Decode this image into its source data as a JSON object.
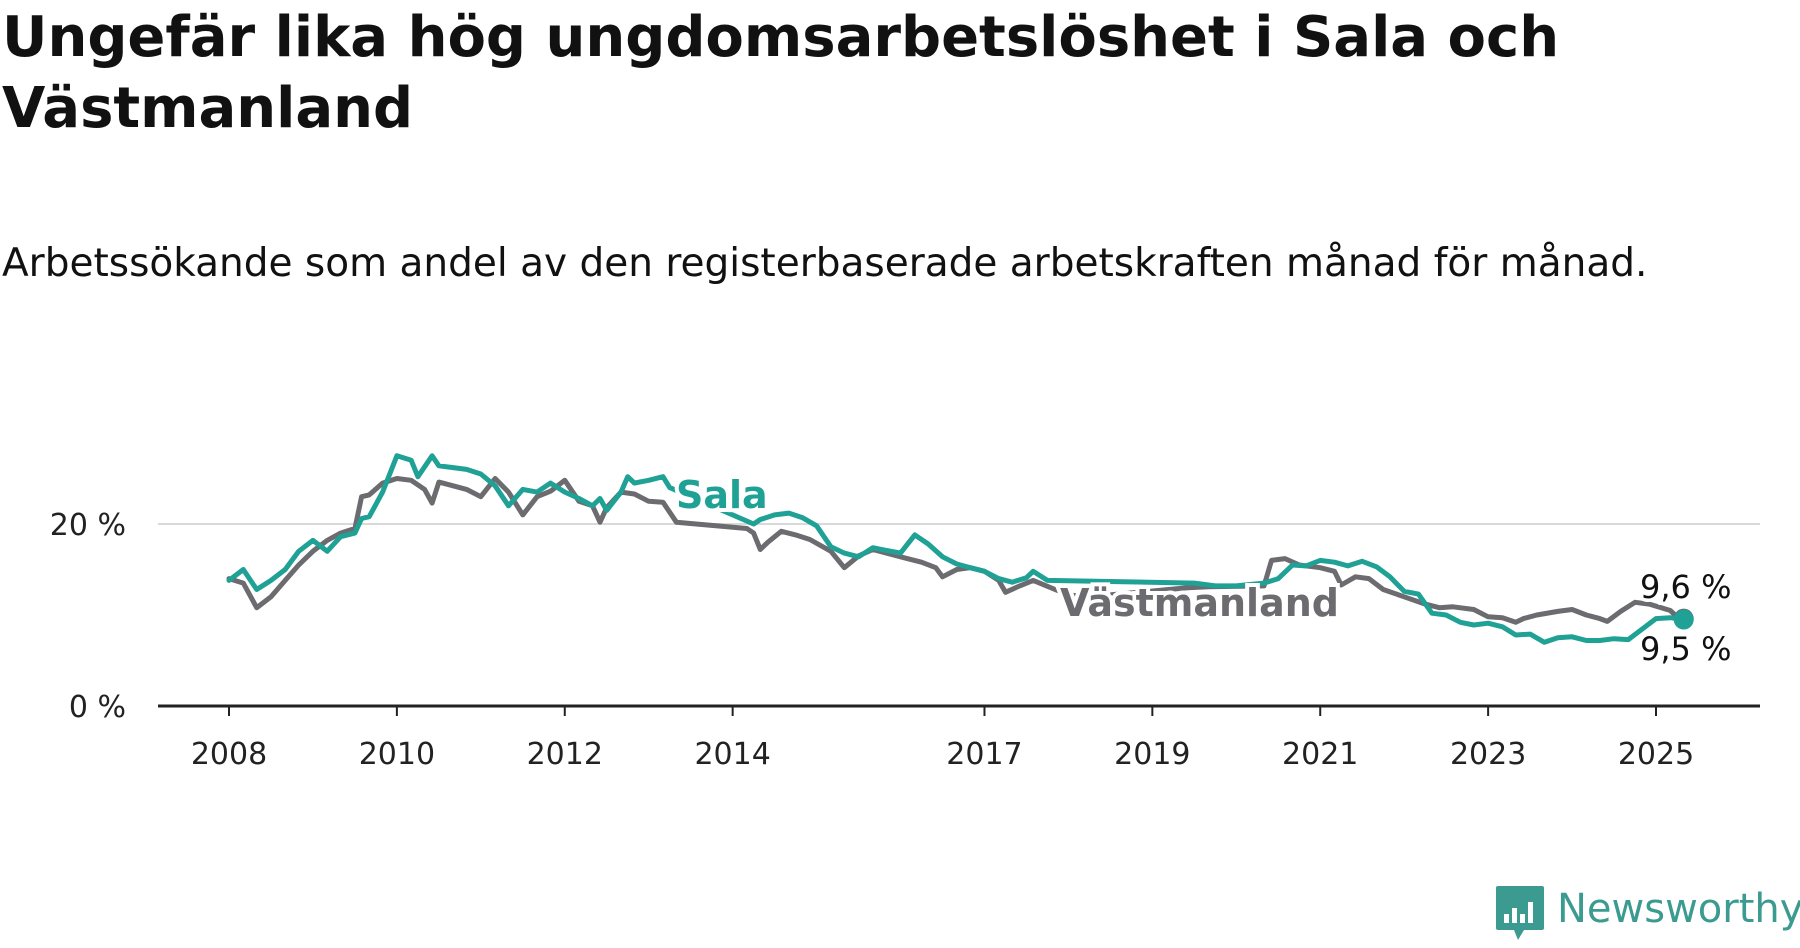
{
  "title": "Ungefär lika hög ungdomsarbetslöshet i Sala och Västmanland",
  "subtitle": "Arbetssökande som andel av den registerbaserade arbetskraften månad för månad.",
  "brand": {
    "name": "Newsworthy",
    "icon": "newsworthy-logo-icon",
    "color": "#3c9b91"
  },
  "chart_data": {
    "type": "line",
    "title": "Ungefär lika hög ungdomsarbetslöshet i Sala och Västmanland",
    "subtitle": "Arbetssökande som andel av den registerbaserade arbetskraften månad för månad.",
    "xlabel": "",
    "ylabel": "",
    "x_ticks": [
      "2008",
      "2010",
      "2012",
      "2014",
      "2017",
      "2019",
      "2021",
      "2023",
      "2025"
    ],
    "y_ticks": [
      "0 %",
      "20 %"
    ],
    "ylim": [
      0,
      30
    ],
    "grid": "horizontal",
    "legend": "inline labels",
    "series": [
      {
        "name": "Västmanland",
        "color": "#6b6b70",
        "end_label": "9,6 %",
        "points": [
          [
            2008.0,
            14.0
          ],
          [
            2008.17,
            13.5
          ],
          [
            2008.33,
            10.8
          ],
          [
            2008.5,
            12.0
          ],
          [
            2008.67,
            13.8
          ],
          [
            2008.83,
            15.5
          ],
          [
            2009.0,
            17.0
          ],
          [
            2009.17,
            18.2
          ],
          [
            2009.33,
            19.0
          ],
          [
            2009.5,
            19.5
          ],
          [
            2009.58,
            23.0
          ],
          [
            2009.67,
            23.2
          ],
          [
            2009.83,
            24.5
          ],
          [
            2010.0,
            25.0
          ],
          [
            2010.17,
            24.8
          ],
          [
            2010.33,
            23.8
          ],
          [
            2010.42,
            22.3
          ],
          [
            2010.5,
            24.6
          ],
          [
            2010.67,
            24.2
          ],
          [
            2010.83,
            23.8
          ],
          [
            2011.0,
            23.0
          ],
          [
            2011.17,
            25.0
          ],
          [
            2011.33,
            23.5
          ],
          [
            2011.5,
            21.0
          ],
          [
            2011.67,
            23.0
          ],
          [
            2011.83,
            23.6
          ],
          [
            2012.0,
            24.8
          ],
          [
            2012.17,
            22.5
          ],
          [
            2012.33,
            22.0
          ],
          [
            2012.42,
            20.2
          ],
          [
            2012.5,
            21.8
          ],
          [
            2012.67,
            23.5
          ],
          [
            2012.83,
            23.3
          ],
          [
            2013.0,
            22.5
          ],
          [
            2013.17,
            22.4
          ],
          [
            2013.33,
            20.2
          ],
          [
            2014.17,
            19.5
          ],
          [
            2014.25,
            19.0
          ],
          [
            2014.33,
            17.2
          ],
          [
            2014.42,
            18.0
          ],
          [
            2014.58,
            19.2
          ],
          [
            2014.75,
            18.8
          ],
          [
            2014.92,
            18.3
          ],
          [
            2015.17,
            17.0
          ],
          [
            2015.33,
            15.2
          ],
          [
            2015.5,
            16.5
          ],
          [
            2015.67,
            17.2
          ],
          [
            2015.83,
            16.8
          ],
          [
            2016.08,
            16.2
          ],
          [
            2016.25,
            15.8
          ],
          [
            2016.42,
            15.2
          ],
          [
            2016.5,
            14.2
          ],
          [
            2016.67,
            15.0
          ],
          [
            2016.83,
            15.2
          ],
          [
            2017.0,
            14.8
          ],
          [
            2017.17,
            13.8
          ],
          [
            2017.25,
            12.5
          ],
          [
            2017.42,
            13.2
          ],
          [
            2017.58,
            13.8
          ],
          [
            2018.0,
            12.2
          ],
          [
            2018.25,
            12.0
          ],
          [
            2019.42,
            13.0
          ],
          [
            2019.67,
            13.1
          ],
          [
            2020.33,
            13.2
          ],
          [
            2020.42,
            16.0
          ],
          [
            2020.58,
            16.2
          ],
          [
            2020.75,
            15.5
          ],
          [
            2021.0,
            15.2
          ],
          [
            2021.17,
            14.8
          ],
          [
            2021.25,
            13.3
          ],
          [
            2021.42,
            14.2
          ],
          [
            2021.58,
            14.0
          ],
          [
            2021.75,
            12.8
          ],
          [
            2022.0,
            12.0
          ],
          [
            2022.25,
            11.2
          ],
          [
            2022.42,
            10.8
          ],
          [
            2022.58,
            10.9
          ],
          [
            2022.83,
            10.6
          ],
          [
            2023.0,
            9.8
          ],
          [
            2023.17,
            9.7
          ],
          [
            2023.33,
            9.2
          ],
          [
            2023.42,
            9.6
          ],
          [
            2023.58,
            10.0
          ],
          [
            2023.83,
            10.4
          ],
          [
            2024.0,
            10.6
          ],
          [
            2024.17,
            10.0
          ],
          [
            2024.33,
            9.6
          ],
          [
            2024.42,
            9.3
          ],
          [
            2024.58,
            10.4
          ],
          [
            2024.75,
            11.4
          ],
          [
            2024.92,
            11.2
          ],
          [
            2025.17,
            10.5
          ],
          [
            2025.25,
            9.8
          ],
          [
            2025.33,
            9.6
          ]
        ]
      },
      {
        "name": "Sala",
        "color": "#1fa196",
        "end_label": "9,5 %",
        "points": [
          [
            2008.0,
            13.8
          ],
          [
            2008.17,
            15.0
          ],
          [
            2008.33,
            12.8
          ],
          [
            2008.5,
            13.8
          ],
          [
            2008.67,
            15.0
          ],
          [
            2008.83,
            17.0
          ],
          [
            2009.0,
            18.2
          ],
          [
            2009.17,
            17.0
          ],
          [
            2009.33,
            18.6
          ],
          [
            2009.5,
            19.0
          ],
          [
            2009.58,
            20.6
          ],
          [
            2009.67,
            20.8
          ],
          [
            2009.83,
            23.5
          ],
          [
            2010.0,
            27.5
          ],
          [
            2010.17,
            27.0
          ],
          [
            2010.25,
            25.2
          ],
          [
            2010.42,
            27.5
          ],
          [
            2010.5,
            26.4
          ],
          [
            2010.67,
            26.2
          ],
          [
            2010.83,
            26.0
          ],
          [
            2011.0,
            25.5
          ],
          [
            2011.17,
            24.2
          ],
          [
            2011.33,
            22.0
          ],
          [
            2011.5,
            23.8
          ],
          [
            2011.67,
            23.5
          ],
          [
            2011.83,
            24.5
          ],
          [
            2012.0,
            23.5
          ],
          [
            2012.17,
            22.8
          ],
          [
            2012.33,
            22.0
          ],
          [
            2012.42,
            22.8
          ],
          [
            2012.5,
            21.5
          ],
          [
            2012.67,
            23.5
          ],
          [
            2012.75,
            25.2
          ],
          [
            2012.83,
            24.5
          ],
          [
            2013.0,
            24.8
          ],
          [
            2013.17,
            25.2
          ],
          [
            2013.25,
            24.0
          ],
          [
            2014.25,
            20.0
          ],
          [
            2014.33,
            20.5
          ],
          [
            2014.5,
            21.0
          ],
          [
            2014.67,
            21.2
          ],
          [
            2014.83,
            20.7
          ],
          [
            2015.0,
            19.8
          ],
          [
            2015.17,
            17.5
          ],
          [
            2015.33,
            16.8
          ],
          [
            2015.5,
            16.4
          ],
          [
            2015.67,
            17.4
          ],
          [
            2015.83,
            17.1
          ],
          [
            2016.0,
            16.8
          ],
          [
            2016.17,
            18.8
          ],
          [
            2016.33,
            17.8
          ],
          [
            2016.5,
            16.4
          ],
          [
            2016.67,
            15.6
          ],
          [
            2016.83,
            15.2
          ],
          [
            2017.0,
            14.8
          ],
          [
            2017.17,
            14.0
          ],
          [
            2017.33,
            13.6
          ],
          [
            2017.5,
            14.1
          ],
          [
            2017.58,
            14.8
          ],
          [
            2017.75,
            13.8
          ],
          [
            2019.5,
            13.5
          ],
          [
            2019.75,
            13.2
          ],
          [
            2020.0,
            13.2
          ],
          [
            2020.33,
            13.5
          ],
          [
            2020.5,
            14.0
          ],
          [
            2020.67,
            15.5
          ],
          [
            2020.83,
            15.4
          ],
          [
            2021.0,
            16.0
          ],
          [
            2021.17,
            15.8
          ],
          [
            2021.33,
            15.4
          ],
          [
            2021.5,
            15.9
          ],
          [
            2021.67,
            15.3
          ],
          [
            2021.83,
            14.2
          ],
          [
            2022.0,
            12.6
          ],
          [
            2022.17,
            12.3
          ],
          [
            2022.33,
            10.2
          ],
          [
            2022.5,
            10.0
          ],
          [
            2022.67,
            9.2
          ],
          [
            2022.83,
            8.9
          ],
          [
            2023.0,
            9.1
          ],
          [
            2023.17,
            8.7
          ],
          [
            2023.33,
            7.8
          ],
          [
            2023.5,
            7.9
          ],
          [
            2023.67,
            7.0
          ],
          [
            2023.83,
            7.5
          ],
          [
            2024.0,
            7.6
          ],
          [
            2024.17,
            7.2
          ],
          [
            2024.33,
            7.2
          ],
          [
            2024.5,
            7.4
          ],
          [
            2024.67,
            7.3
          ],
          [
            2025.0,
            9.6
          ],
          [
            2025.17,
            9.7
          ],
          [
            2025.33,
            9.5
          ]
        ]
      }
    ],
    "series_labels": {
      "Sala": "Sala",
      "Västmanland": "Västmanland"
    }
  }
}
